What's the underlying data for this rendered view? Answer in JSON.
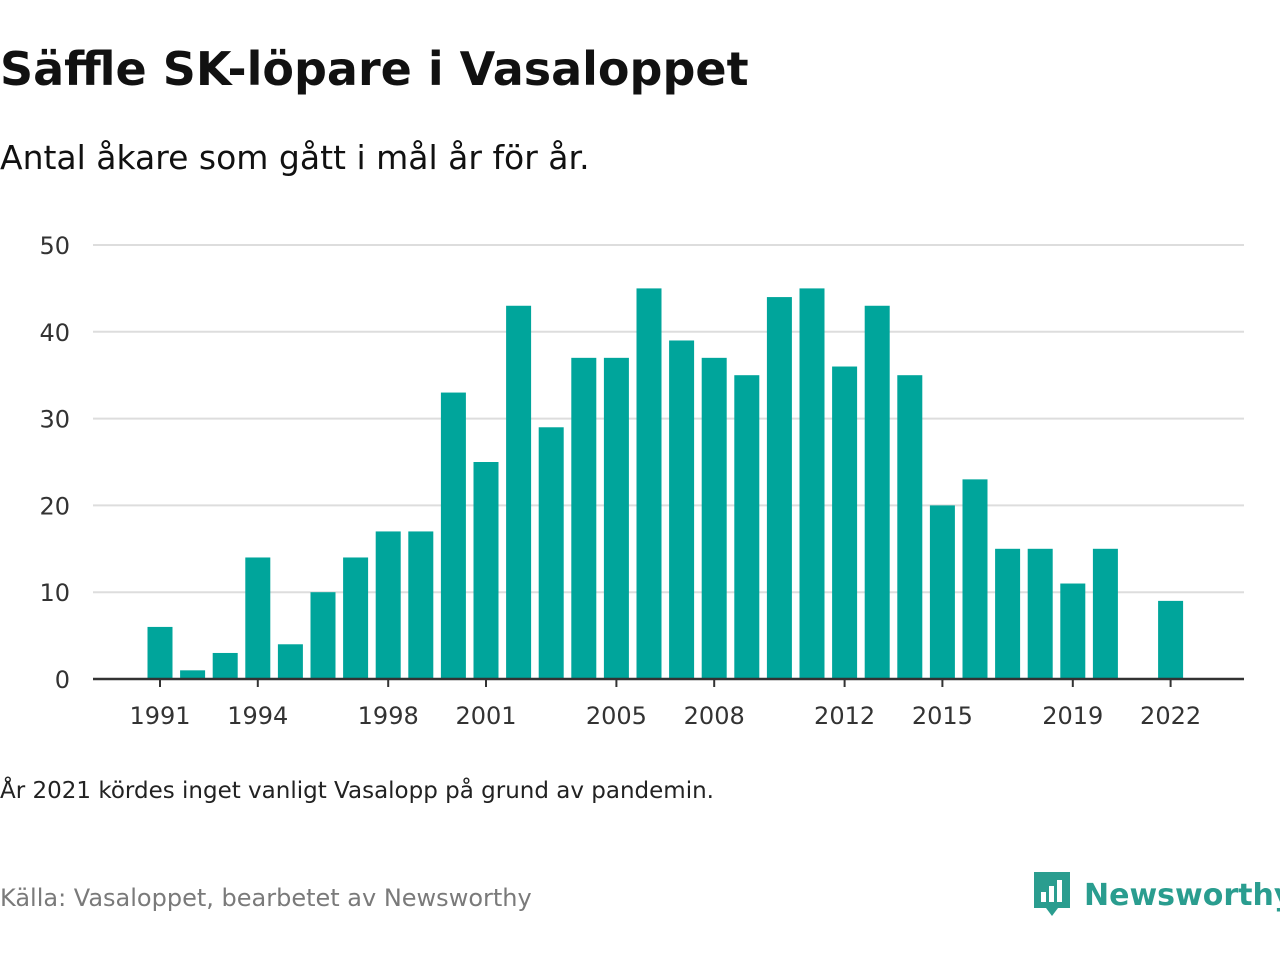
{
  "title": "Säffle SK-löpare i Vasaloppet",
  "subtitle": "Antal åkare som gått i mål år för år.",
  "note": "År 2021 kördes inget vanligt Vasalopp på grund av pandemin.",
  "source": "Källa: Vasaloppet, bearbetet av Newsworthy",
  "logo_text": "Newsworthy",
  "colors": {
    "bar": "#00a59b",
    "grid": "#dddddd",
    "axis": "#333333",
    "logo": "#2a9d8f"
  },
  "chart_data": {
    "type": "bar",
    "title": "Säffle SK-löpare i Vasaloppet",
    "xlabel": "",
    "ylabel": "",
    "ylim": [
      0,
      50
    ],
    "yticks": [
      0,
      10,
      20,
      30,
      40,
      50
    ],
    "xtick_labels": [
      "1991",
      "1994",
      "1998",
      "2001",
      "2005",
      "2008",
      "2012",
      "2015",
      "2019",
      "2022"
    ],
    "grid": true,
    "categories": [
      "1991",
      "1992",
      "1993",
      "1994",
      "1995",
      "1996",
      "1997",
      "1998",
      "1999",
      "2000",
      "2001",
      "2002",
      "2003",
      "2004",
      "2005",
      "2006",
      "2007",
      "2008",
      "2009",
      "2010",
      "2011",
      "2012",
      "2013",
      "2014",
      "2015",
      "2016",
      "2017",
      "2018",
      "2019",
      "2020",
      "2021",
      "2022"
    ],
    "values": [
      6,
      1,
      3,
      14,
      4,
      10,
      14,
      17,
      17,
      33,
      25,
      43,
      29,
      37,
      37,
      45,
      39,
      37,
      35,
      44,
      45,
      36,
      43,
      35,
      20,
      23,
      15,
      15,
      11,
      15,
      null,
      9
    ]
  }
}
